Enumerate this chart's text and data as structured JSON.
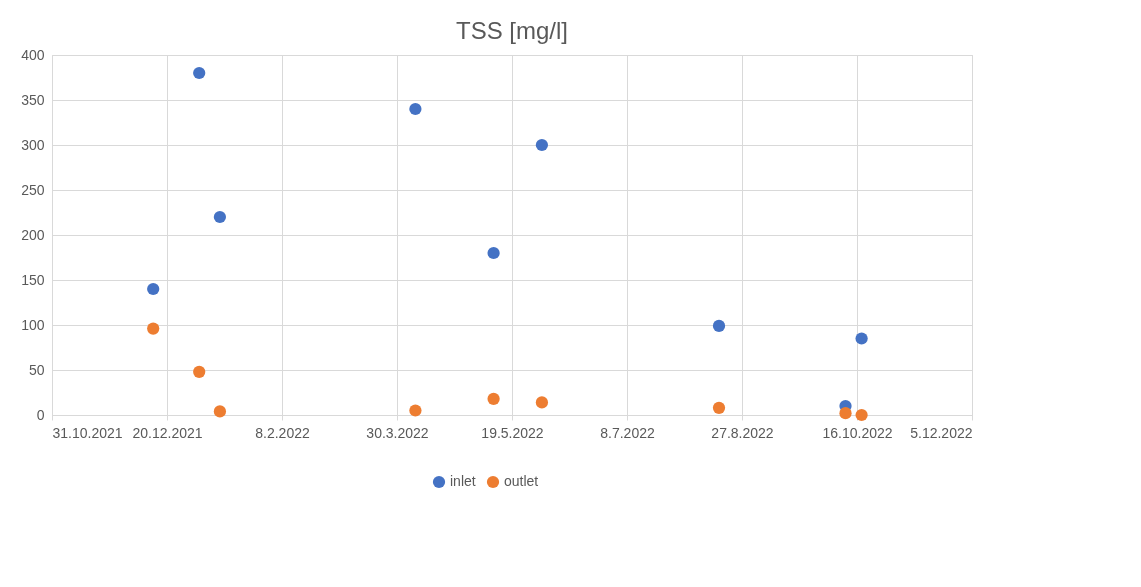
{
  "chart_data": {
    "type": "scatter",
    "title": "TSS [mg/l]",
    "series": [
      {
        "name": "inlet",
        "color": "#4472c4",
        "x": [
          "2021-12-14",
          "2022-01-03",
          "2022-01-12",
          "2022-04-07",
          "2022-05-11",
          "2022-06-01",
          "2022-08-17",
          "2022-10-11",
          "2022-10-18"
        ],
        "values": [
          140,
          380,
          220,
          340,
          180,
          300,
          99,
          10,
          85
        ]
      },
      {
        "name": "outlet",
        "color": "#ed7d31",
        "x": [
          "2021-12-14",
          "2022-01-03",
          "2022-01-12",
          "2022-04-07",
          "2022-05-11",
          "2022-06-01",
          "2022-08-17",
          "2022-10-11",
          "2022-10-18"
        ],
        "values": [
          96,
          48,
          4,
          5,
          18,
          14,
          8,
          2,
          0
        ]
      }
    ],
    "xlim": [
      "2021-10-31",
      "2022-12-05"
    ],
    "xticks": [
      {
        "value": "2021-10-31",
        "label": "31.10.2021"
      },
      {
        "value": "2021-12-20",
        "label": "20.12.2021"
      },
      {
        "value": "2022-02-08",
        "label": "8.2.2022"
      },
      {
        "value": "2022-03-30",
        "label": "30.3.2022"
      },
      {
        "value": "2022-05-19",
        "label": "19.5.2022"
      },
      {
        "value": "2022-07-08",
        "label": "8.7.2022"
      },
      {
        "value": "2022-08-27",
        "label": "27.8.2022"
      },
      {
        "value": "2022-10-16",
        "label": "16.10.2022"
      },
      {
        "value": "2022-12-05",
        "label": "5.12.2022"
      }
    ],
    "ylim": [
      0,
      400
    ],
    "yticks": [
      0,
      50,
      100,
      150,
      200,
      250,
      300,
      350,
      400
    ],
    "grid": true,
    "legend": "bottom",
    "marker": "circle"
  }
}
